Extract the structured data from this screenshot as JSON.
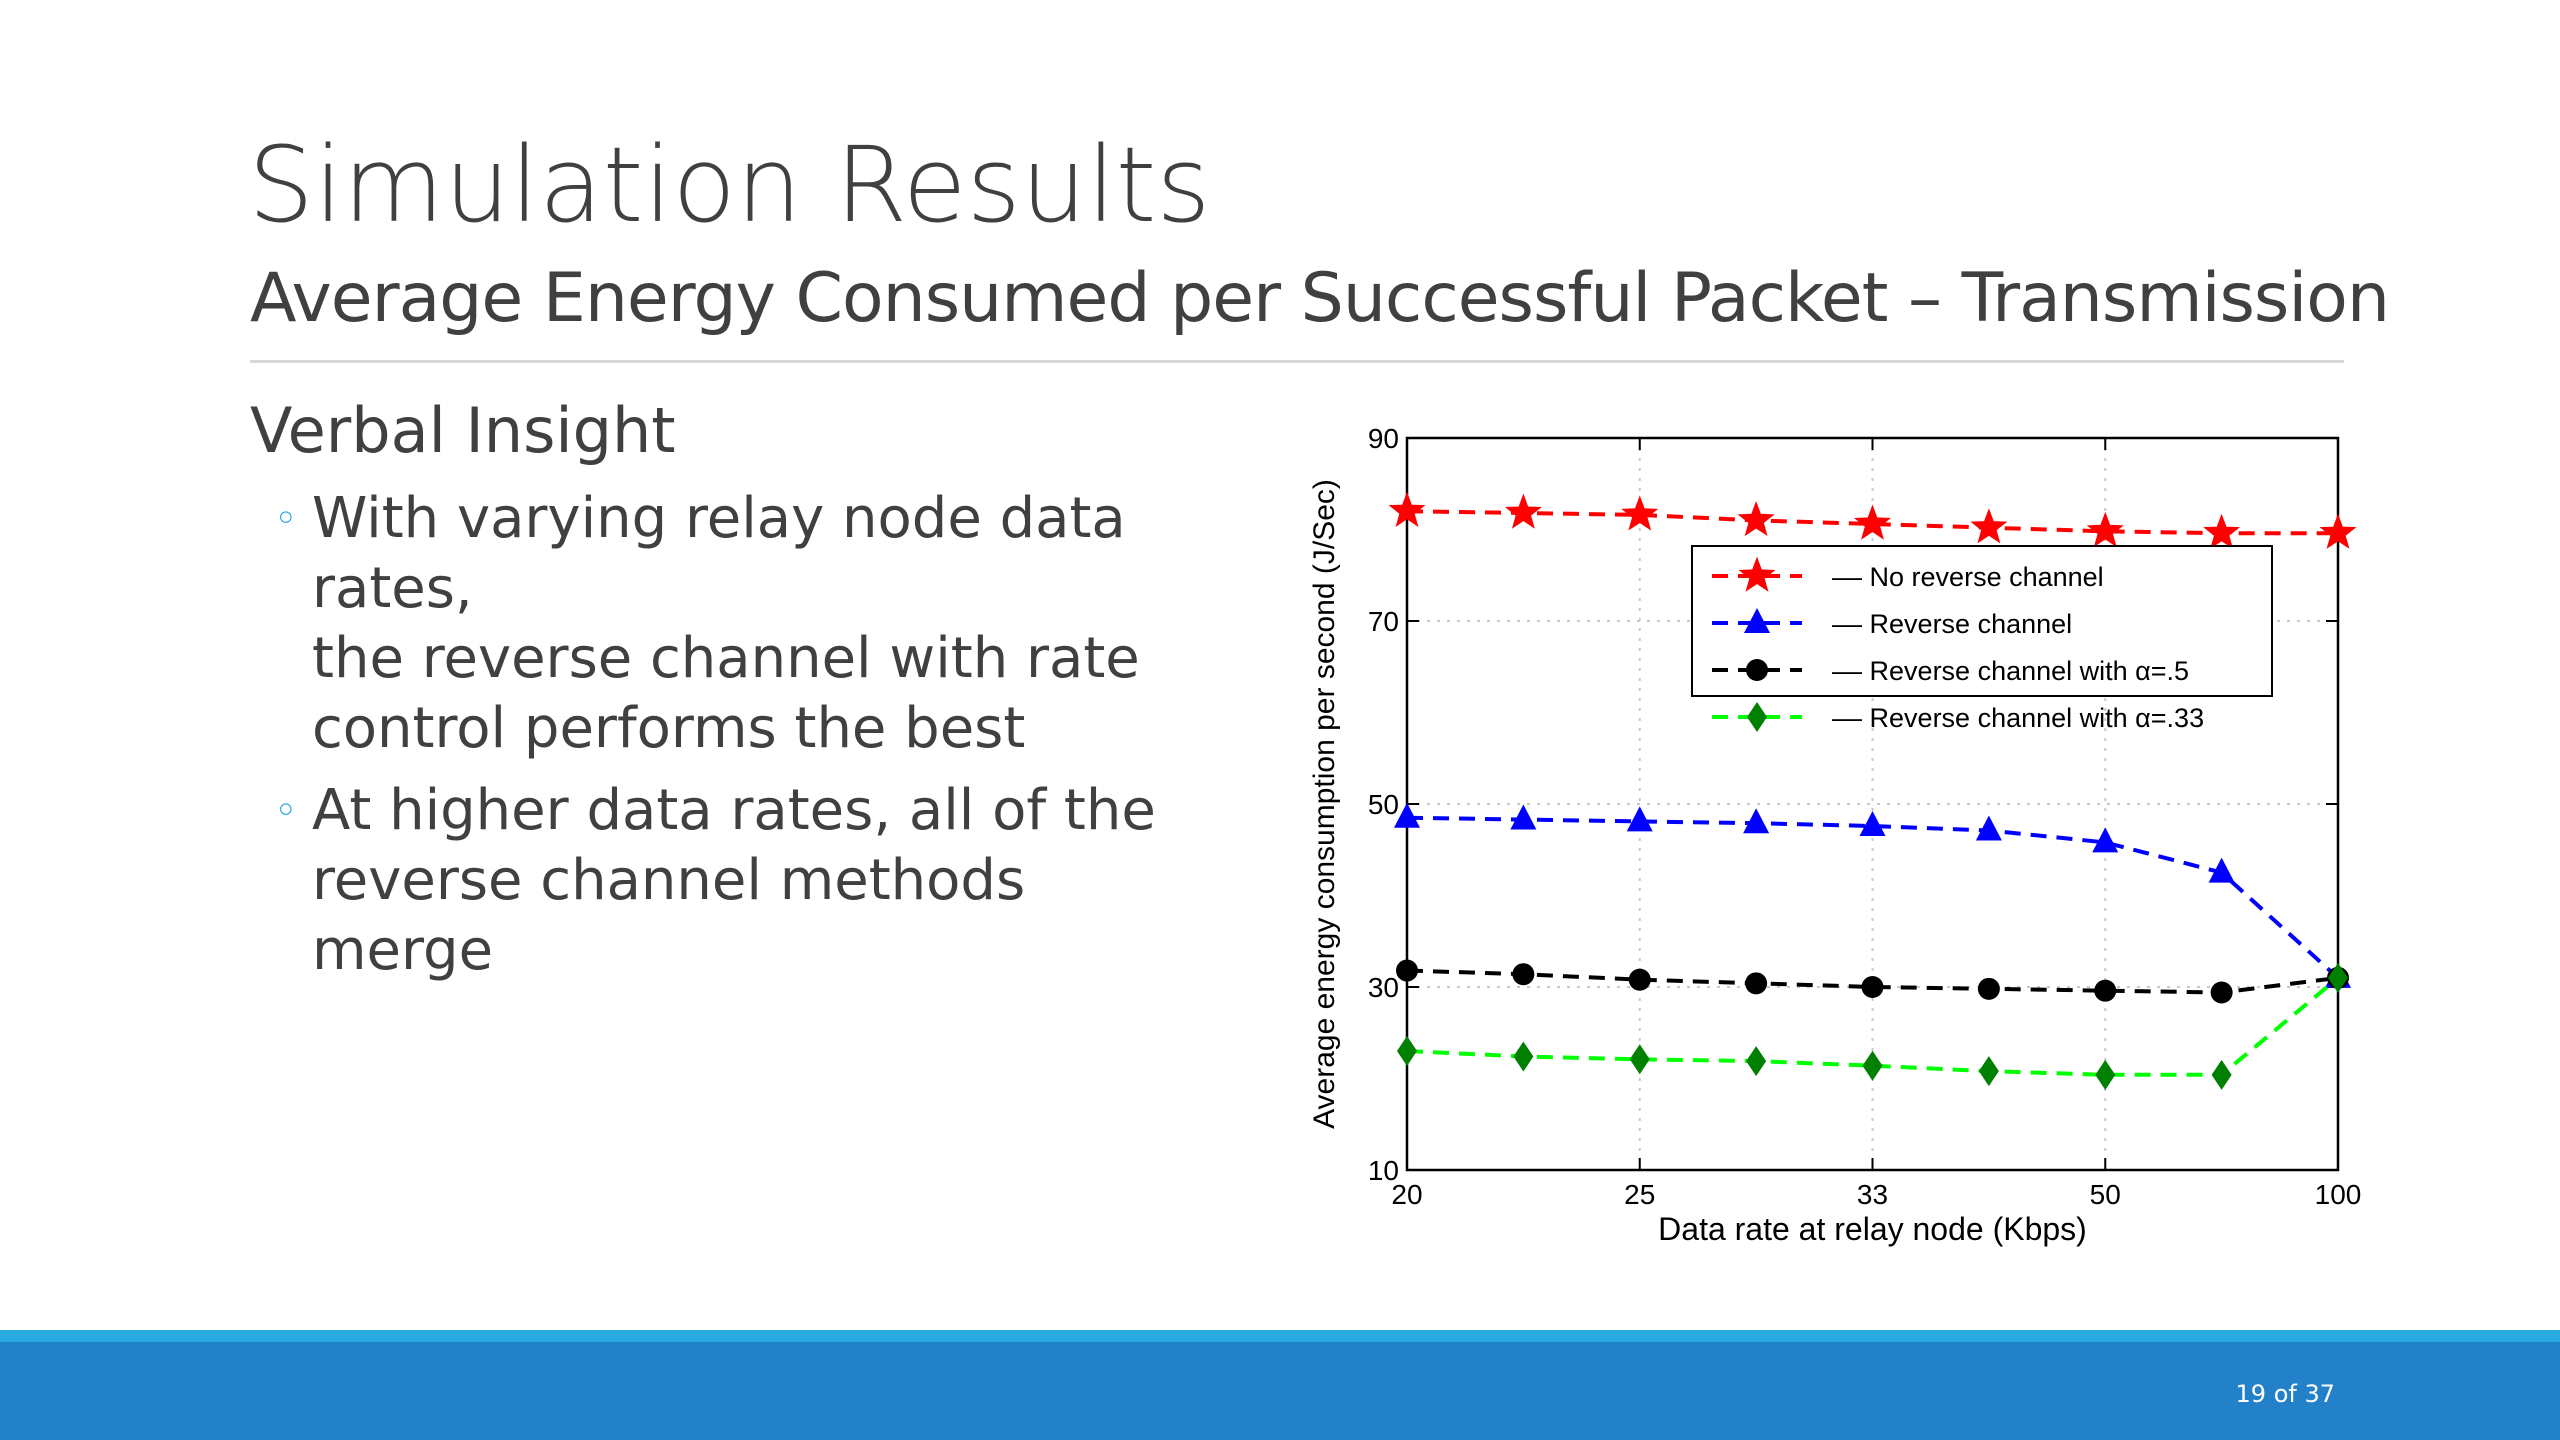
{
  "slide": {
    "title": "Simulation Results",
    "subtitle": "Average Energy Consumed per Successful Packet – Transmission",
    "section_heading": "Verbal Insight",
    "bullet_marker": "◦",
    "bullets": [
      {
        "lines": [
          "With varying relay node data rates,",
          "the reverse channel with rate",
          "control performs the best"
        ]
      },
      {
        "lines": [
          "At higher data rates, all of the",
          "reverse channel methods",
          "merge"
        ]
      }
    ],
    "page_number": "19 of 37"
  },
  "colors": {
    "accent_bar": "#29abe2",
    "footer_bar": "#2281c8",
    "bullet": "#29a9e0",
    "text": "#404040"
  },
  "chart_data": {
    "type": "line",
    "title": "",
    "xlabel": "Data rate at relay node (Kbps)",
    "ylabel": "Average energy consumption per second (J/Sec)",
    "x_tick_labels": [
      "20",
      "25",
      "33",
      "50",
      "100"
    ],
    "x_tick_positions": [
      0,
      2,
      4,
      6,
      8
    ],
    "x_points": [
      0,
      1,
      2,
      3,
      4,
      5,
      6,
      7,
      8
    ],
    "ylim": [
      10,
      90
    ],
    "y_ticks": [
      10,
      30,
      50,
      70,
      90
    ],
    "grid": true,
    "legend_position": "upper-right",
    "series": [
      {
        "name": "–– No reverse channel",
        "color": "#ff0000",
        "marker": "star",
        "values": [
          82,
          81.8,
          81.6,
          81,
          80.6,
          80.2,
          79.8,
          79.6,
          79.6
        ]
      },
      {
        "name": "–– Reverse channel",
        "color": "#0000ff",
        "marker": "triangle",
        "values": [
          48.5,
          48.3,
          48.1,
          47.9,
          47.6,
          47.1,
          45.8,
          42.5,
          31
        ]
      },
      {
        "name": "–– Reverse channel with α=.5",
        "color": "#000000",
        "marker": "circle",
        "values": [
          31.8,
          31.4,
          30.8,
          30.4,
          30,
          29.8,
          29.6,
          29.4,
          31
        ]
      },
      {
        "name": "–– Reverse channel with α=.33",
        "color": "#00ff00",
        "marker_color": "#008000",
        "marker": "diamond",
        "values": [
          23,
          22.4,
          22.1,
          21.9,
          21.4,
          20.8,
          20.4,
          20.4,
          31
        ]
      }
    ]
  }
}
